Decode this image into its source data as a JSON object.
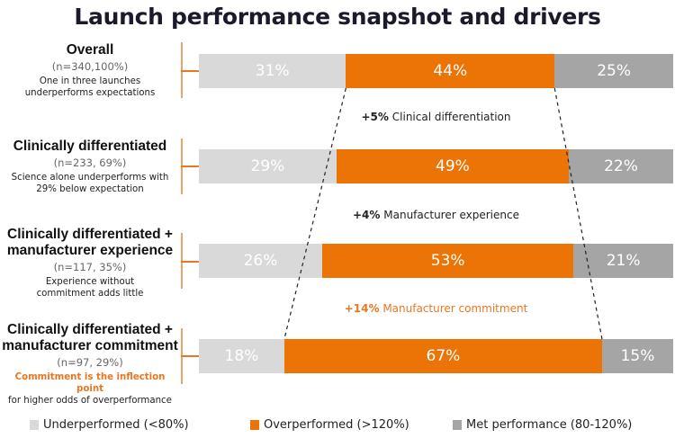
{
  "title": "Launch performance snapshot and drivers",
  "colors": {
    "underperformed": "#d9d9d9",
    "overperformed": "#ec7406",
    "met": "#a5a5a5",
    "accent": "#e87722"
  },
  "rows": [
    {
      "name": "Overall",
      "n": "(n=340,100%)",
      "desc_highlight": "",
      "desc": "One in three launches underperforms expectations",
      "segments": [
        {
          "key": "underperformed",
          "value": 31,
          "label": "31%"
        },
        {
          "key": "overperformed",
          "value": 44,
          "label": "44%"
        },
        {
          "key": "met",
          "value": 25,
          "label": "25%"
        }
      ]
    },
    {
      "name": "Clinically differentiated",
      "n": "(n=233, 69%)",
      "desc_highlight": "",
      "desc": "Science alone underperforms with 29% below expectation",
      "segments": [
        {
          "key": "underperformed",
          "value": 29,
          "label": "29%"
        },
        {
          "key": "overperformed",
          "value": 49,
          "label": "49%"
        },
        {
          "key": "met",
          "value": 22,
          "label": "22%"
        }
      ]
    },
    {
      "name": "Clinically differentiated + manufacturer experience",
      "n": "(n=117, 35%)",
      "desc_highlight": "",
      "desc": "Experience without commitment adds little",
      "segments": [
        {
          "key": "underperformed",
          "value": 26,
          "label": "26%"
        },
        {
          "key": "overperformed",
          "value": 53,
          "label": "53%"
        },
        {
          "key": "met",
          "value": 21,
          "label": "21%"
        }
      ]
    },
    {
      "name": "Clinically differentiated + manufacturer commitment",
      "n": "(n=97, 29%)",
      "desc_highlight": "Commitment is the inflection point",
      "desc": "for higher odds of overperformance",
      "segments": [
        {
          "key": "underperformed",
          "value": 18,
          "label": "18%"
        },
        {
          "key": "overperformed",
          "value": 67,
          "label": "67%"
        },
        {
          "key": "met",
          "value": 15,
          "label": "15%"
        }
      ]
    }
  ],
  "drivers": [
    {
      "delta": "+5%",
      "label": "Clinical differentiation",
      "accent": false
    },
    {
      "delta": "+4%",
      "label": "Manufacturer experience",
      "accent": false
    },
    {
      "delta": "+14%",
      "label": "Manufacturer commitment",
      "accent": true
    }
  ],
  "legend": [
    {
      "key": "underperformed",
      "label": "Underperformed (<80%)"
    },
    {
      "key": "overperformed",
      "label": "Overperformed (>120%)"
    },
    {
      "key": "met",
      "label": "Met performance (80-120%)"
    }
  ],
  "chart_data": {
    "type": "bar",
    "orientation": "horizontal",
    "stacked": true,
    "normalized_percent": true,
    "title": "Launch performance snapshot and drivers",
    "categories": [
      "Overall",
      "Clinically differentiated",
      "Clinically differentiated + manufacturer experience",
      "Clinically differentiated + manufacturer commitment"
    ],
    "category_details": [
      "(n=340,100%)",
      "(n=233, 69%)",
      "(n=117, 35%)",
      "(n=97, 29%)"
    ],
    "series": [
      {
        "name": "Underperformed (<80%)",
        "values": [
          31,
          29,
          26,
          18
        ]
      },
      {
        "name": "Overperformed (>120%)",
        "values": [
          44,
          49,
          53,
          67
        ]
      },
      {
        "name": "Met performance (80-120%)",
        "values": [
          25,
          22,
          21,
          15
        ]
      }
    ],
    "annotations": [
      "+5% Clinical differentiation",
      "+4% Manufacturer experience",
      "+14% Manufacturer commitment"
    ],
    "xlim": [
      0,
      100
    ],
    "xlabel": "",
    "ylabel": "",
    "grid": false,
    "legend_position": "bottom"
  }
}
